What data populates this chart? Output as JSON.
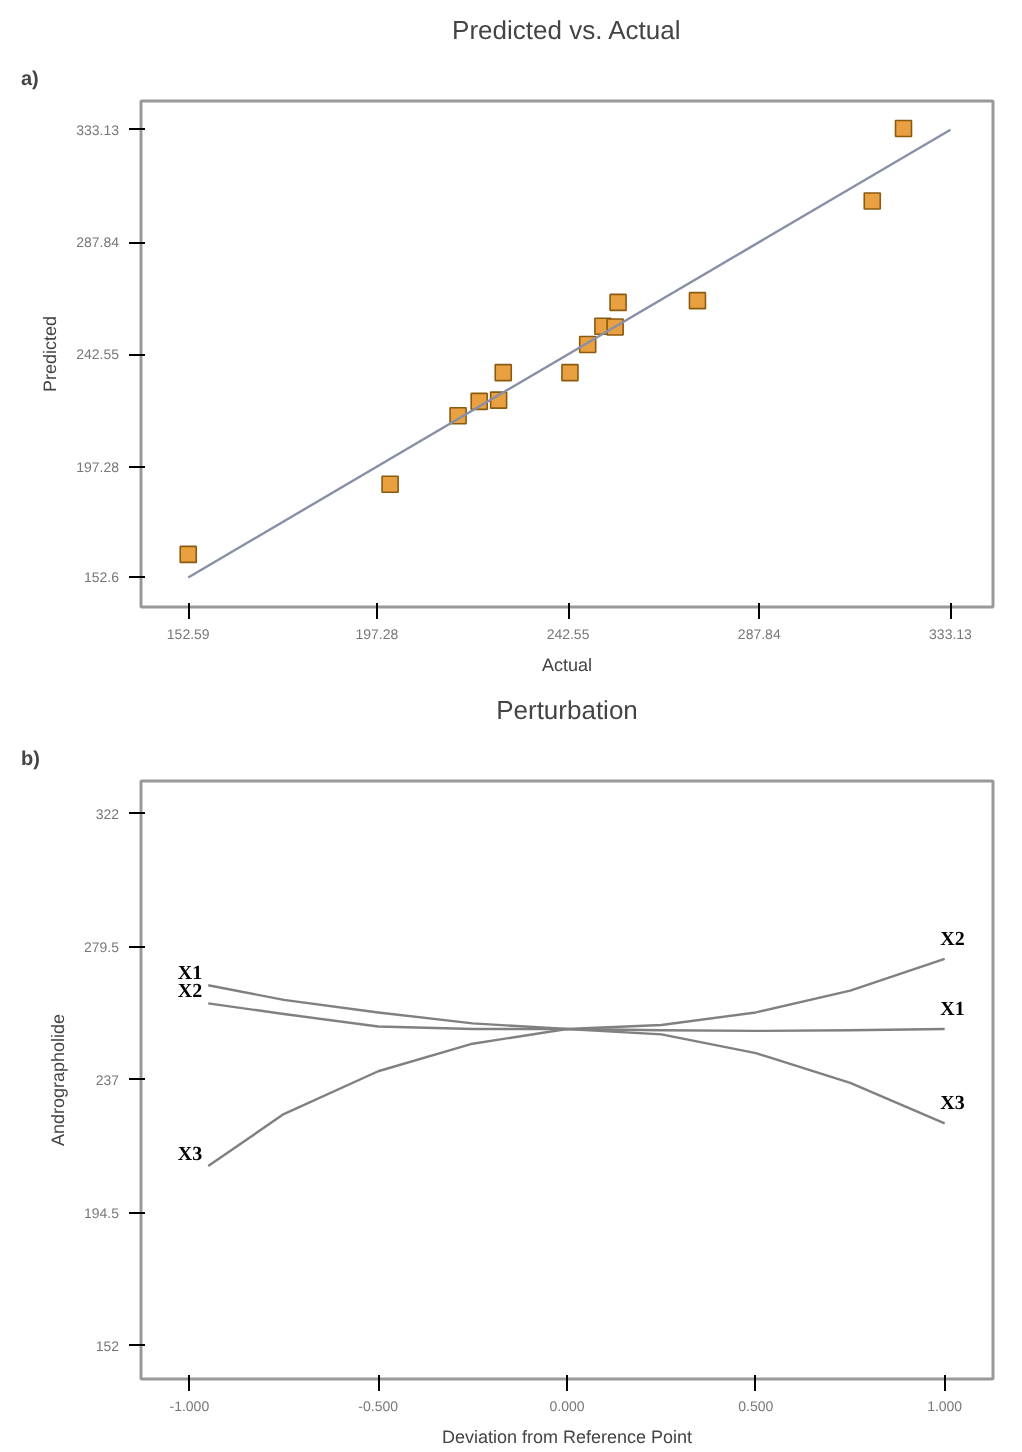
{
  "chart_data": [
    {
      "type": "scatter",
      "title": "Predicted vs. Actual",
      "xlabel": "Actual",
      "ylabel": "Predicted",
      "annotations": [
        "a)"
      ],
      "grid": false,
      "legend": false,
      "xlim": [
        141.4,
        343.2
      ],
      "ylim": [
        140.7,
        344.7
      ],
      "xticks": [
        152.59,
        197.28,
        242.55,
        287.84,
        333.13
      ],
      "yticks": [
        152.6,
        197.28,
        242.55,
        287.84,
        333.13
      ],
      "series": [
        {
          "type": "scatter",
          "marker": "square",
          "color": "#e8a040",
          "x": [
            152.59,
            200.4,
            216.5,
            221.5,
            226.1,
            227.2,
            243.0,
            247.2,
            250.8,
            253.7,
            254.4,
            273.2,
            314.6,
            322.0
          ],
          "values": [
            161.9,
            190.2,
            217.8,
            223.6,
            224.1,
            235.2,
            235.2,
            246.5,
            253.9,
            253.6,
            263.5,
            264.2,
            304.4,
            333.6
          ]
        },
        {
          "type": "line",
          "color": "#8890a8",
          "x": [
            152.59,
            333.13
          ],
          "values": [
            152.6,
            333.13
          ]
        }
      ]
    },
    {
      "type": "line",
      "title": "Perturbation",
      "xlabel": "Deviation from Reference Point",
      "ylabel": "Andrographolide",
      "annotations": [
        "b)"
      ],
      "marker": "none",
      "line_style": "solid",
      "grid": false,
      "legend": false,
      "xlim": [
        -1.128,
        1.128
      ],
      "ylim": [
        141.3,
        332.5
      ],
      "xticks": [
        {
          "value": -1,
          "label": "-1.000"
        },
        {
          "value": -0.5,
          "label": "-0.500"
        },
        {
          "value": 0,
          "label": "0.000"
        },
        {
          "value": 0.5,
          "label": "0.500"
        },
        {
          "value": 1,
          "label": "1.000"
        }
      ],
      "yticks": [
        152,
        194.5,
        237,
        279.5,
        322
      ],
      "x": [
        -0.95,
        -0.75,
        -0.5,
        -0.25,
        0,
        0.25,
        0.5,
        0.75,
        1.0
      ],
      "series": [
        {
          "name": "X1",
          "color": "#808080",
          "values": [
            267.2,
            262.5,
            258.5,
            255,
            253.2,
            252.8,
            252.6,
            252.8,
            253.2
          ]
        },
        {
          "name": "X2",
          "color": "#808080",
          "values": [
            261.4,
            258,
            254,
            253.2,
            253.2,
            254.5,
            258.5,
            265.5,
            275.6
          ]
        },
        {
          "name": "X3",
          "color": "#808080",
          "values": [
            209.4,
            226,
            239.7,
            248.5,
            253.2,
            251.5,
            245.5,
            236,
            223
          ]
        }
      ]
    }
  ]
}
